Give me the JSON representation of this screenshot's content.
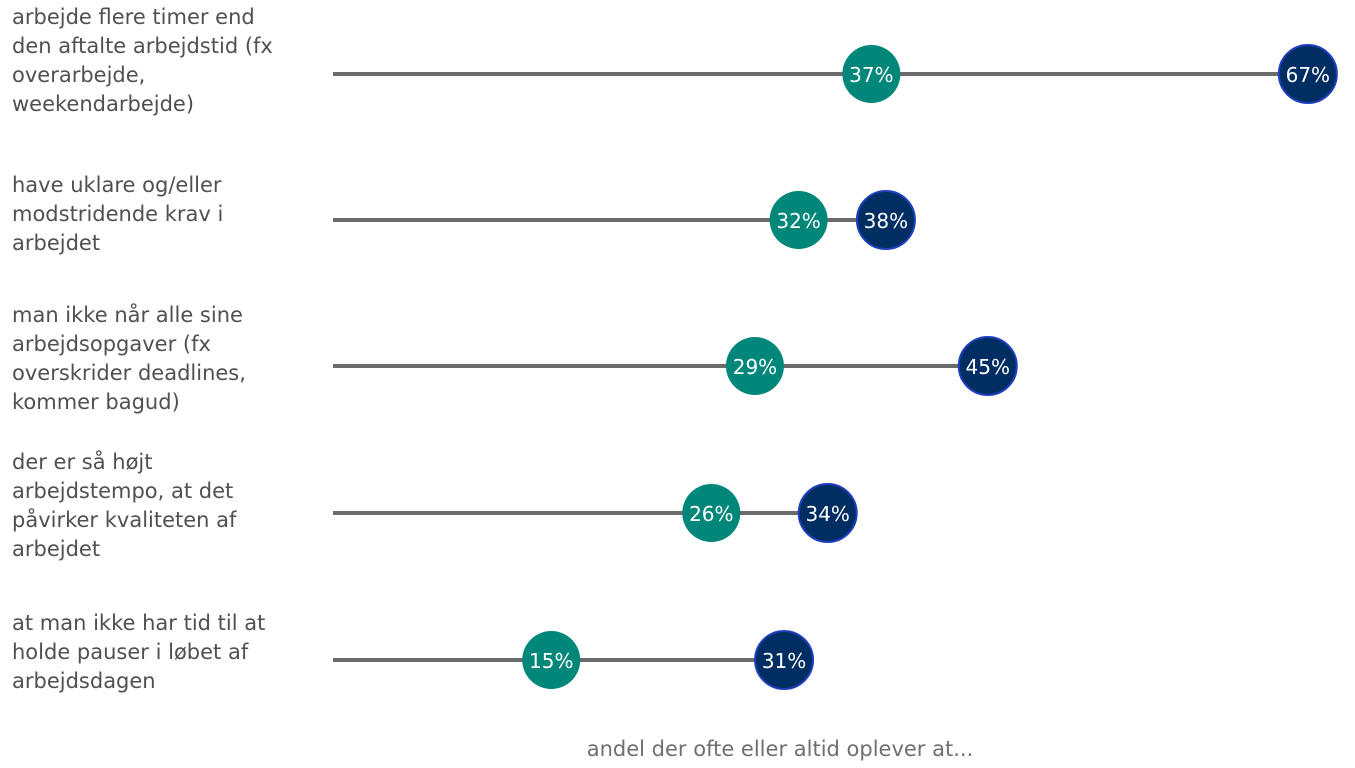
{
  "chart_data": {
    "type": "dumbbell",
    "categories": [
      "arbejde flere timer end den aftalte arbejdstid (fx overarbejde, weekendarbejde)",
      "have uklare og/eller modstridende krav i arbejdet",
      "man ikke når alle sine arbejdsopgaver (fx overskrider deadlines, kommer bagud)",
      "der er så højt arbejdstempo, at det påvirker kvaliteten af arbejdet",
      "at man ikke har tid til at holde pauser i løbet af arbejdsdagen"
    ],
    "category_lines": [
      "arbejde flere timer end\nden aftalte arbejdstid (fx\noverarbejde,\nweekendarbejde)",
      "have uklare og/eller\nmodstridende krav i\narbejdet",
      "man ikke når alle sine\narbejdsopgaver (fx\noverskrider deadlines,\nkommer bagud)",
      "der er så højt\narbejdstempo, at det\npåvirker kvaliteten af\narbejdet",
      "at man ikke har tid til at\nholde pauser i løbet af\narbejdsdagen"
    ],
    "series": [
      {
        "values": [
          37,
          32,
          29,
          26,
          15
        ],
        "labels": [
          "37%",
          "32%",
          "29%",
          "26%",
          "15%"
        ],
        "color": "#00877a"
      },
      {
        "values": [
          67,
          38,
          45,
          34,
          31
        ],
        "labels": [
          "67%",
          "38%",
          "45%",
          "34%",
          "31%"
        ],
        "color": "#002d62"
      }
    ],
    "xlabel": "andel der ofte eller altid oplever at...",
    "xlim": [
      0,
      70
    ],
    "line_color": "#6b6b6b",
    "marker_edge_color": "#1f3fbf",
    "grid": false
  }
}
